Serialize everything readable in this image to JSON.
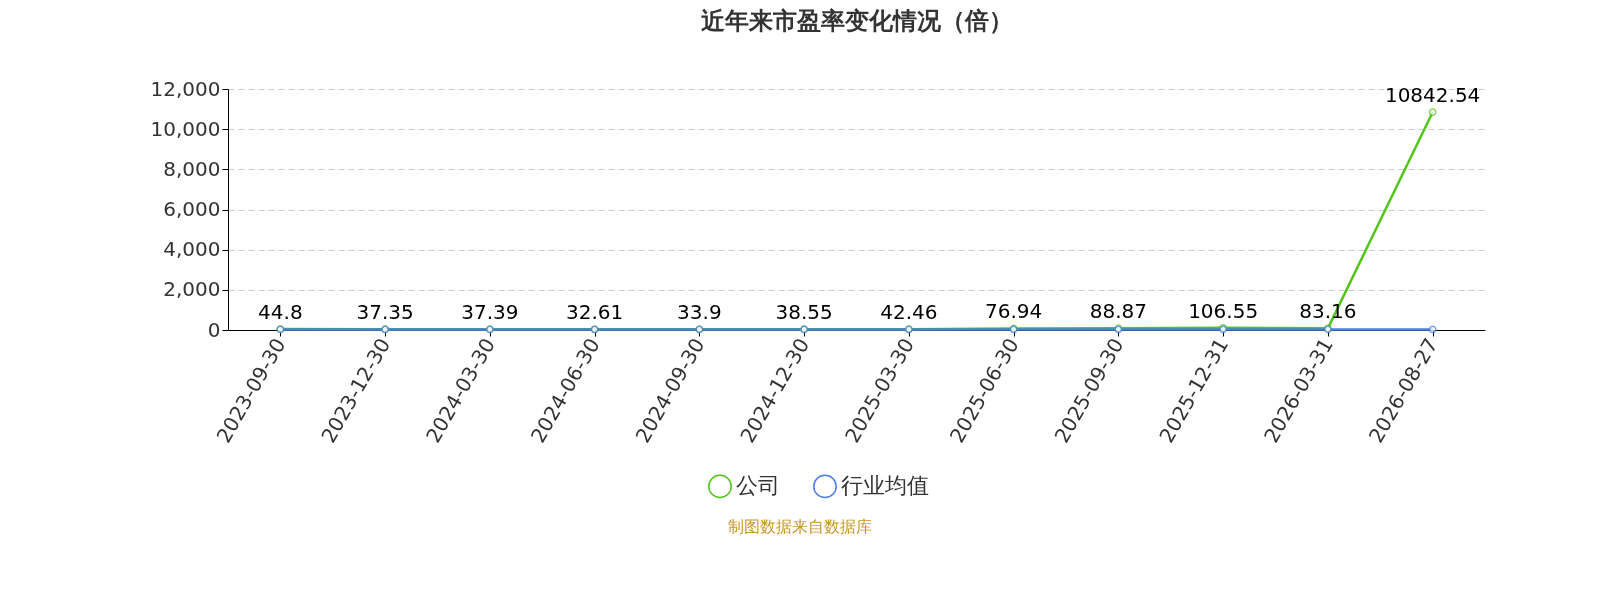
{
  "chart_data": {
    "type": "line",
    "title": "近年来市盈率变化情况（倍）",
    "categories": [
      "2023-09-30",
      "2023-12-30",
      "2024-03-30",
      "2024-06-30",
      "2024-09-30",
      "2024-12-30",
      "2025-03-30",
      "2025-06-30",
      "2025-09-30",
      "2025-12-31",
      "2026-03-31",
      "2026-08-27"
    ],
    "series": [
      {
        "name": "公司",
        "color": "#52c41a",
        "data_labels": true,
        "values": [
          44.8,
          37.35,
          37.39,
          32.61,
          33.9,
          38.55,
          42.46,
          76.94,
          88.87,
          106.55,
          83.16,
          10842.54
        ]
      },
      {
        "name": "行业均值",
        "color": "#4a7ee0",
        "values": [
          30,
          30,
          30,
          30,
          30,
          30,
          30,
          30,
          30,
          30,
          30,
          30
        ]
      }
    ],
    "ylim": [
      0,
      12000
    ],
    "yticks": [
      0,
      {
        "value": 2000,
        "label": "2,000"
      },
      {
        "value": 4000,
        "label": "4,000"
      },
      {
        "value": 6000,
        "label": "6,000"
      },
      {
        "value": 8000,
        "label": "8,000"
      },
      {
        "value": 10000,
        "label": "10,000"
      },
      {
        "value": 12000,
        "label": "12,000"
      }
    ],
    "grid": "y",
    "legend": "bottom",
    "marker": "circle",
    "line_style": "solid",
    "annotations": [
      "制图数据来自数据库"
    ]
  }
}
